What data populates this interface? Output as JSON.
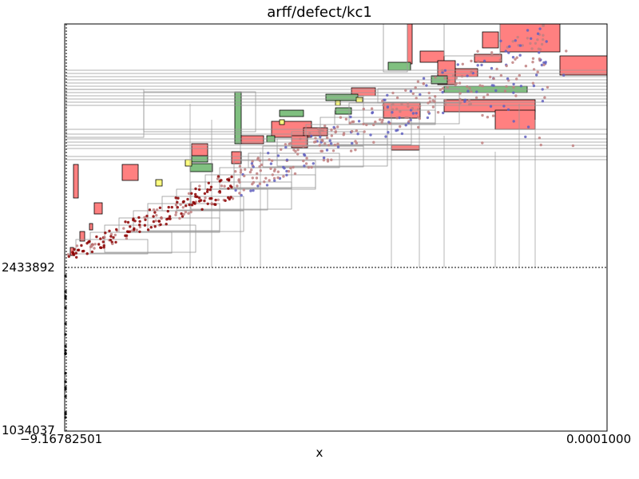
{
  "chart_data": {
    "type": "scatter",
    "title": "arff/defect/kc1",
    "xlabel": "x",
    "ylabel": "",
    "x_scale": "log",
    "y_scale": "log",
    "xlim": [
      -9.16782501,
      0.0001
    ],
    "ylim": [
      1034037,
      1000000000
    ],
    "x_tick_labels": [
      "−9.16782501",
      "0.0001000"
    ],
    "y_tick_labels": [
      "1034037",
      "2433892"
    ],
    "y_tick_values": [
      1034037,
      2433892
    ],
    "grid": false,
    "legend": "none",
    "colors": {
      "red_region": "#ff8080",
      "green_region": "#80c080",
      "yellow_region": "#ffff80",
      "class_a_points": "#6060c0",
      "class_b_points": "#c08080",
      "dark_points": "#8b0000",
      "partition_lines": "#999999"
    },
    "series": [
      {
        "name": "",
        "point_color": "#6060c0",
        "count_estimate": 320
      },
      {
        "name": "",
        "point_color": "#c08080",
        "count_estimate": 380
      }
    ]
  }
}
